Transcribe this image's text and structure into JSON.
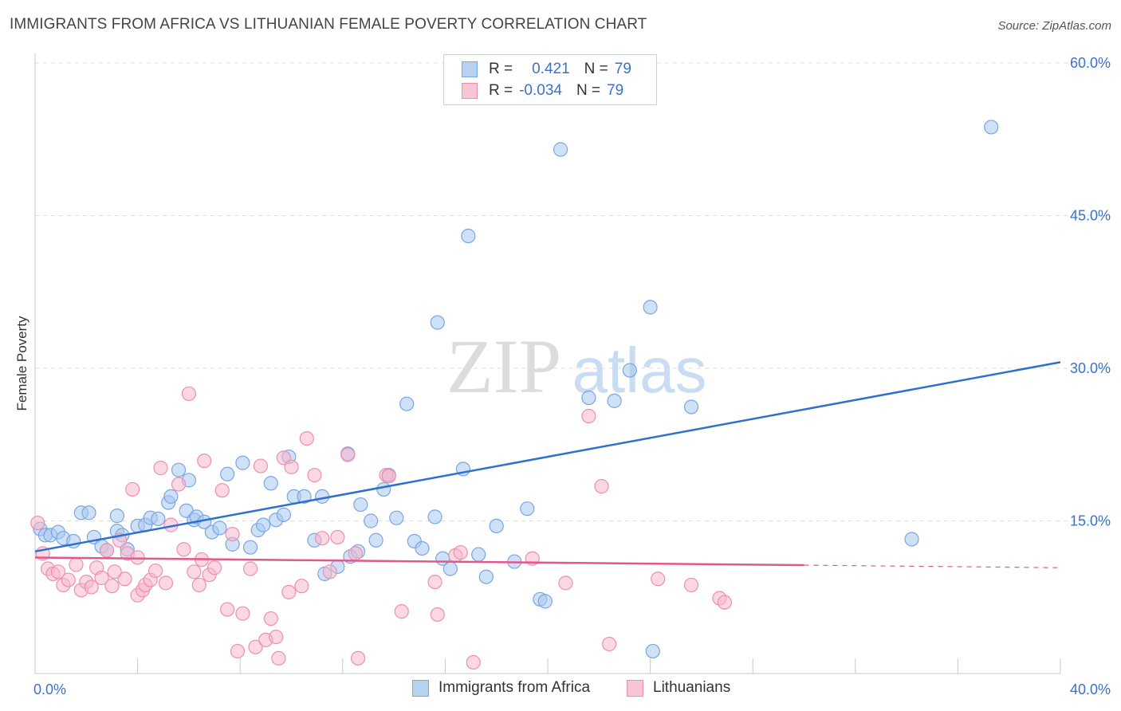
{
  "header": {
    "title": "IMMIGRANTS FROM AFRICA VS LITHUANIAN FEMALE POVERTY CORRELATION CHART",
    "source": "Source: ZipAtlas.com"
  },
  "legend": {
    "rows": [
      {
        "r_label": "R =",
        "r_value": "0.421",
        "n_label": "N =",
        "n_value": "79"
      },
      {
        "r_label": "R =",
        "r_value": "-0.034",
        "n_label": "N =",
        "n_value": "79"
      }
    ]
  },
  "watermark": {
    "zip": "ZIP",
    "atlas": "atlas"
  },
  "colors": {
    "blue_fill": "#a8c8f0",
    "blue_stroke": "#7aa6e0",
    "blue_line": "#2f6fd0",
    "pink_fill": "#f7b8cc",
    "pink_stroke": "#ee8fb0",
    "pink_line": "#e2588a",
    "axis_text": "#3a72c9",
    "grid": "#dddddd"
  },
  "chart_data": {
    "type": "scatter",
    "title": "IMMIGRANTS FROM AFRICA VS LITHUANIAN FEMALE POVERTY CORRELATION CHART",
    "xlabel": "",
    "ylabel": "Female Poverty",
    "xlim": [
      0,
      40
    ],
    "ylim": [
      0,
      60
    ],
    "x_tick_labels": [
      "0.0%",
      "40.0%"
    ],
    "y_ticks": [
      {
        "value": 15,
        "label": "15.0%"
      },
      {
        "value": 30,
        "label": "30.0%"
      },
      {
        "value": 45,
        "label": "45.0%"
      },
      {
        "value": 60,
        "label": "60.0%"
      }
    ],
    "x_minor_ticks": [
      0,
      4,
      8,
      12,
      16,
      20,
      24,
      28,
      32,
      36,
      40
    ],
    "grid": true,
    "series": [
      {
        "name": "Immigrants from Africa",
        "color": "blue",
        "trend": {
          "x": [
            0,
            40
          ],
          "y": [
            12.0,
            30.6
          ],
          "dashed_from": null
        },
        "points": [
          [
            0.2,
            14.2
          ],
          [
            0.4,
            13.6
          ],
          [
            0.6,
            13.6
          ],
          [
            0.9,
            13.9
          ],
          [
            1.1,
            13.3
          ],
          [
            1.5,
            13.0
          ],
          [
            1.8,
            15.8
          ],
          [
            2.1,
            15.8
          ],
          [
            2.3,
            13.4
          ],
          [
            2.6,
            12.5
          ],
          [
            2.8,
            12.1
          ],
          [
            3.2,
            14.0
          ],
          [
            3.2,
            15.5
          ],
          [
            3.4,
            13.6
          ],
          [
            3.6,
            12.2
          ],
          [
            4.0,
            14.5
          ],
          [
            4.3,
            14.6
          ],
          [
            4.5,
            15.3
          ],
          [
            4.8,
            15.2
          ],
          [
            5.2,
            16.8
          ],
          [
            5.3,
            17.4
          ],
          [
            5.6,
            20.0
          ],
          [
            5.9,
            16.0
          ],
          [
            6.0,
            19.0
          ],
          [
            6.2,
            15.1
          ],
          [
            6.3,
            15.4
          ],
          [
            6.6,
            14.9
          ],
          [
            6.9,
            13.9
          ],
          [
            7.2,
            14.3
          ],
          [
            7.5,
            19.6
          ],
          [
            7.7,
            12.7
          ],
          [
            8.1,
            20.7
          ],
          [
            8.4,
            12.4
          ],
          [
            8.7,
            14.1
          ],
          [
            8.9,
            14.6
          ],
          [
            9.2,
            18.7
          ],
          [
            9.4,
            15.1
          ],
          [
            9.7,
            15.6
          ],
          [
            9.9,
            21.3
          ],
          [
            10.1,
            17.4
          ],
          [
            10.5,
            17.4
          ],
          [
            10.9,
            13.1
          ],
          [
            11.2,
            17.4
          ],
          [
            11.3,
            9.8
          ],
          [
            11.8,
            10.5
          ],
          [
            12.2,
            21.6
          ],
          [
            12.3,
            11.5
          ],
          [
            12.6,
            12.0
          ],
          [
            12.7,
            16.6
          ],
          [
            13.1,
            15.0
          ],
          [
            13.3,
            13.1
          ],
          [
            13.6,
            18.1
          ],
          [
            13.8,
            19.5
          ],
          [
            14.1,
            15.3
          ],
          [
            14.5,
            26.5
          ],
          [
            14.8,
            13.0
          ],
          [
            15.1,
            12.3
          ],
          [
            15.6,
            15.4
          ],
          [
            15.7,
            34.5
          ],
          [
            15.9,
            11.3
          ],
          [
            16.2,
            10.3
          ],
          [
            16.7,
            20.1
          ],
          [
            16.9,
            43.0
          ],
          [
            17.3,
            11.7
          ],
          [
            17.6,
            9.5
          ],
          [
            18.0,
            14.5
          ],
          [
            18.7,
            11.0
          ],
          [
            19.2,
            16.2
          ],
          [
            19.7,
            7.3
          ],
          [
            19.9,
            7.1
          ],
          [
            20.5,
            51.5
          ],
          [
            21.6,
            27.1
          ],
          [
            22.6,
            26.8
          ],
          [
            23.2,
            29.8
          ],
          [
            24.0,
            36.0
          ],
          [
            24.1,
            2.2
          ],
          [
            25.6,
            26.2
          ],
          [
            34.2,
            13.2
          ],
          [
            37.3,
            53.7
          ]
        ]
      },
      {
        "name": "Lithuanians",
        "color": "pink",
        "trend": {
          "x": [
            0,
            40
          ],
          "y": [
            11.4,
            10.4
          ],
          "dashed_from": 30
        },
        "points": [
          [
            0.1,
            14.8
          ],
          [
            0.3,
            11.8
          ],
          [
            0.5,
            10.3
          ],
          [
            0.7,
            9.8
          ],
          [
            0.9,
            10.0
          ],
          [
            1.1,
            8.7
          ],
          [
            1.3,
            9.2
          ],
          [
            1.6,
            10.7
          ],
          [
            1.8,
            8.2
          ],
          [
            2.0,
            9.0
          ],
          [
            2.2,
            8.5
          ],
          [
            2.4,
            10.4
          ],
          [
            2.6,
            9.4
          ],
          [
            2.8,
            12.1
          ],
          [
            3.0,
            8.6
          ],
          [
            3.3,
            13.1
          ],
          [
            3.5,
            9.3
          ],
          [
            3.6,
            11.8
          ],
          [
            3.8,
            18.1
          ],
          [
            4.0,
            7.7
          ],
          [
            4.2,
            8.2
          ],
          [
            4.3,
            8.7
          ],
          [
            4.5,
            9.2
          ],
          [
            4.7,
            10.1
          ],
          [
            4.9,
            20.2
          ],
          [
            5.1,
            8.9
          ],
          [
            5.3,
            14.6
          ],
          [
            5.6,
            18.6
          ],
          [
            5.8,
            12.2
          ],
          [
            6.0,
            27.5
          ],
          [
            6.2,
            10.0
          ],
          [
            6.4,
            8.7
          ],
          [
            6.6,
            20.9
          ],
          [
            6.8,
            9.7
          ],
          [
            7.0,
            10.4
          ],
          [
            7.3,
            18.0
          ],
          [
            7.5,
            6.3
          ],
          [
            7.7,
            13.7
          ],
          [
            7.9,
            2.2
          ],
          [
            8.1,
            5.9
          ],
          [
            8.4,
            10.3
          ],
          [
            8.6,
            2.6
          ],
          [
            8.8,
            20.4
          ],
          [
            9.0,
            3.3
          ],
          [
            9.2,
            5.4
          ],
          [
            9.4,
            3.6
          ],
          [
            9.5,
            1.5
          ],
          [
            9.7,
            21.2
          ],
          [
            9.9,
            8.0
          ],
          [
            10.0,
            20.3
          ],
          [
            10.4,
            8.6
          ],
          [
            10.6,
            23.1
          ],
          [
            10.9,
            19.5
          ],
          [
            11.2,
            13.3
          ],
          [
            11.5,
            10.0
          ],
          [
            11.8,
            13.4
          ],
          [
            12.2,
            21.5
          ],
          [
            12.5,
            11.8
          ],
          [
            12.6,
            1.5
          ],
          [
            13.7,
            19.5
          ],
          [
            14.3,
            6.1
          ],
          [
            15.6,
            9.0
          ],
          [
            15.7,
            5.8
          ],
          [
            16.4,
            11.6
          ],
          [
            16.6,
            11.9
          ],
          [
            17.1,
            1.1
          ],
          [
            19.4,
            11.3
          ],
          [
            20.7,
            8.9
          ],
          [
            21.6,
            25.3
          ],
          [
            22.1,
            18.4
          ],
          [
            22.4,
            2.9
          ],
          [
            24.3,
            9.3
          ],
          [
            25.6,
            8.7
          ],
          [
            26.7,
            7.4
          ],
          [
            26.9,
            7.0
          ],
          [
            3.1,
            10.0
          ],
          [
            4.0,
            11.4
          ],
          [
            6.5,
            11.2
          ],
          [
            13.8,
            19.4
          ]
        ]
      }
    ]
  }
}
